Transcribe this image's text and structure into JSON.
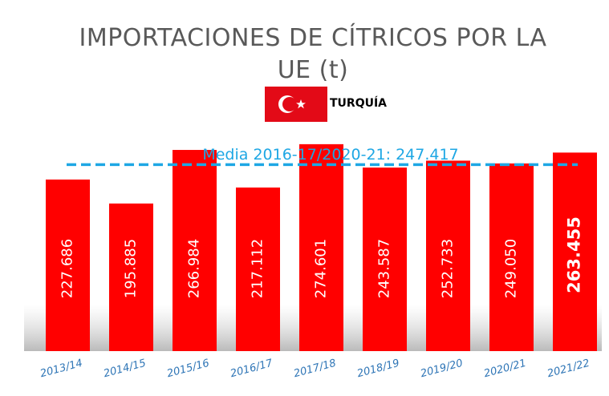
{
  "chart_data": {
    "type": "bar",
    "title": "IMPORTACIONES DE CÍTRICOS POR LA UE (t)",
    "legend_label": "TURQUÍA",
    "categories": [
      "2013/14",
      "2014/15",
      "2015/16",
      "2016/17",
      "2017/18",
      "2018/19",
      "2019/20",
      "2020/21",
      "2021/22"
    ],
    "values": [
      227686,
      195885,
      266984,
      217112,
      274601,
      243587,
      252733,
      249050,
      263455
    ],
    "value_labels": [
      "227.686",
      "195.885",
      "266.984",
      "217.112",
      "274.601",
      "243.587",
      "252.733",
      "249.050",
      "263.455"
    ],
    "color": "#ff0000",
    "ylim": [
      0,
      300000
    ],
    "mean_line": {
      "value": 247417,
      "label": "Media 2016-17/2020-21: 247.417",
      "color": "#1ea7e4"
    }
  }
}
